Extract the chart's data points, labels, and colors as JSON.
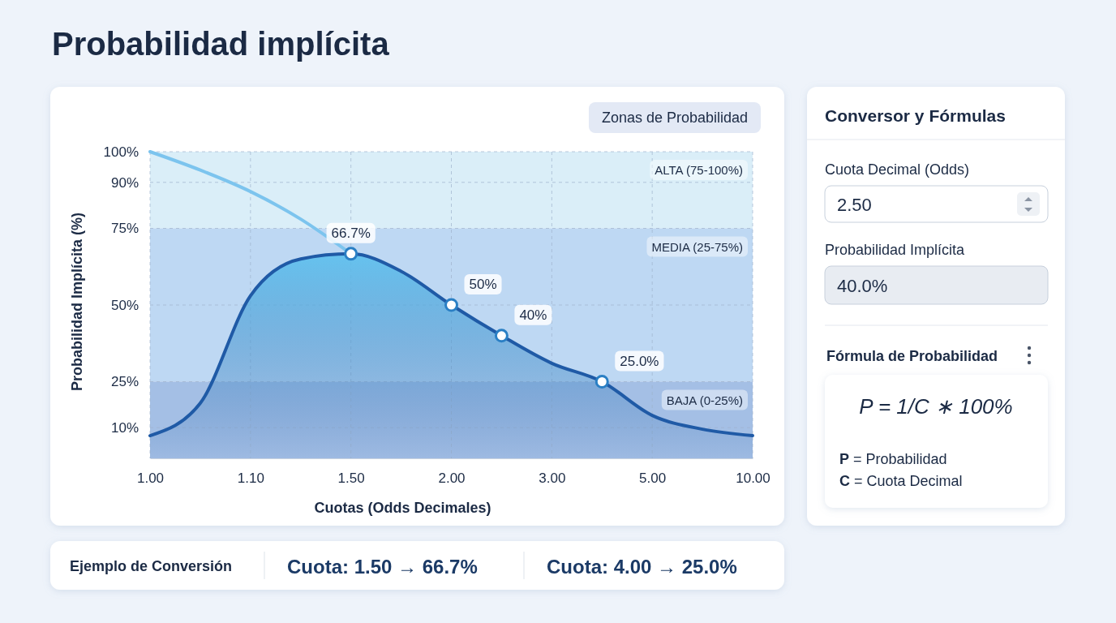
{
  "chart_data": [
    {
      "type": "line",
      "title": "Probabilidad implícita",
      "xlabel": "Cuotas (Odds Decimales)",
      "ylabel": "Probabilidad Implícita (%)",
      "legend_title": "Zonas de Probabilidad",
      "categories": [
        "1.00",
        null,
        "1.10",
        null,
        "1.50",
        null,
        "2.00",
        null,
        "3.00",
        null,
        "5.00",
        null,
        "10.00"
      ],
      "ylim": [
        0,
        100
      ],
      "yticks": [
        {
          "value": 10,
          "label": "10%"
        },
        {
          "value": 25,
          "label": "25%"
        },
        {
          "value": 50,
          "label": "50%"
        },
        {
          "value": 75,
          "label": "75%"
        },
        {
          "value": 90,
          "label": "90%"
        },
        {
          "value": 100,
          "label": "100%"
        }
      ],
      "grid": true,
      "line_style": "solid",
      "bands": [
        {
          "axis": "y",
          "from": 75,
          "to": 100,
          "label": "ALTA (75-100%)",
          "color": "#cde8f6"
        },
        {
          "axis": "y",
          "from": 25,
          "to": 75,
          "label": "MEDIA (25-75%)",
          "color": "#a8cbef"
        },
        {
          "axis": "y",
          "from": 0,
          "to": 25,
          "label": "BAJA (0-25%)",
          "color": "#86a9dc"
        }
      ],
      "series": [
        {
          "type": "area",
          "color": "#1f5aa6",
          "values": [
            7.4,
            18,
            53,
            65,
            66.7,
            61,
            50,
            40,
            31,
            25,
            14,
            9.5,
            7.4
          ]
        },
        {
          "type": "line",
          "color": "#7cc4ee",
          "values": [
            100,
            94,
            87,
            78,
            66.7,
            null,
            null,
            null,
            null,
            null,
            null,
            null,
            null
          ]
        },
        {
          "type": "scatter",
          "marker": "circle",
          "color": "#2a7fc4",
          "values": [
            null,
            null,
            null,
            null,
            66.7,
            null,
            50,
            40,
            null,
            25,
            null,
            null,
            null
          ],
          "value_labels": [
            null,
            null,
            null,
            null,
            "66.7%",
            null,
            "50%",
            "40%",
            null,
            "25.0%",
            null,
            null,
            null
          ]
        }
      ]
    },
    {
      "type": "other",
      "title": "Conversor y Fórmulas",
      "annotations": [
        "Cuota Decimal (Odds)",
        "2.50",
        "Probabilidad Implícita",
        "40.0%",
        "Fórmula de Probabilidad",
        "P = 1/C ∗ 100%",
        "P = Probabilidad",
        "C = Cuota Decimal"
      ]
    },
    {
      "type": "other",
      "title": "Ejemplo de Conversión",
      "annotations": [
        "Cuota: 1.50 → 66.7%",
        "Cuota: 4.00 → 25.0%"
      ]
    }
  ]
}
